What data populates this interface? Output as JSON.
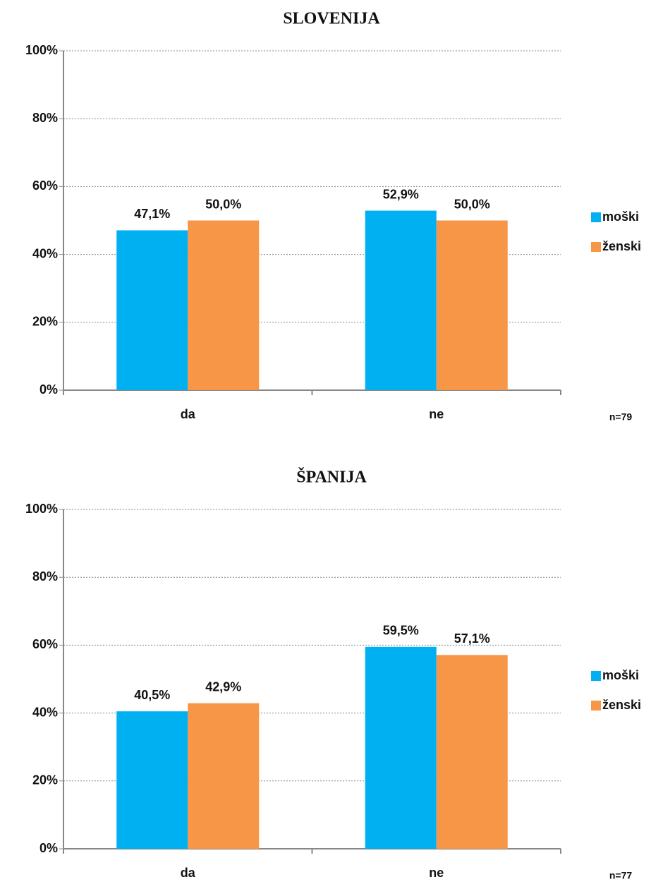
{
  "chart_data": [
    {
      "type": "bar",
      "title": "SLOVENIJA",
      "categories": [
        "da",
        "ne"
      ],
      "series": [
        {
          "name": "moški",
          "color": "#00b0f0",
          "values": [
            47.1,
            52.9
          ],
          "value_labels": [
            "47,1%",
            "52,9%"
          ]
        },
        {
          "name": "ženski",
          "color": "#f79646",
          "values": [
            50.0,
            50.0
          ],
          "value_labels": [
            "50,0%",
            "50,0%"
          ]
        }
      ],
      "ylim": [
        0,
        100
      ],
      "yticks": [
        {
          "value": 0,
          "label": "0%"
        },
        {
          "value": 20,
          "label": "20%"
        },
        {
          "value": 40,
          "label": "40%"
        },
        {
          "value": 60,
          "label": "60%"
        },
        {
          "value": 80,
          "label": "80%"
        },
        {
          "value": 100,
          "label": "100%"
        }
      ],
      "grid": true,
      "legend": "right",
      "annotation": "n=79"
    },
    {
      "type": "bar",
      "title": "ŠPANIJA",
      "categories": [
        "da",
        "ne"
      ],
      "series": [
        {
          "name": "moški",
          "color": "#00b0f0",
          "values": [
            40.5,
            59.5
          ],
          "value_labels": [
            "40,5%",
            "59,5%"
          ]
        },
        {
          "name": "ženski",
          "color": "#f79646",
          "values": [
            42.9,
            57.1
          ],
          "value_labels": [
            "42,9%",
            "57,1%"
          ]
        }
      ],
      "ylim": [
        0,
        100
      ],
      "yticks": [
        {
          "value": 0,
          "label": "0%"
        },
        {
          "value": 20,
          "label": "20%"
        },
        {
          "value": 40,
          "label": "40%"
        },
        {
          "value": 60,
          "label": "60%"
        },
        {
          "value": 80,
          "label": "80%"
        },
        {
          "value": 100,
          "label": "100%"
        }
      ],
      "grid": true,
      "legend": "right",
      "annotation": "n=77"
    }
  ]
}
